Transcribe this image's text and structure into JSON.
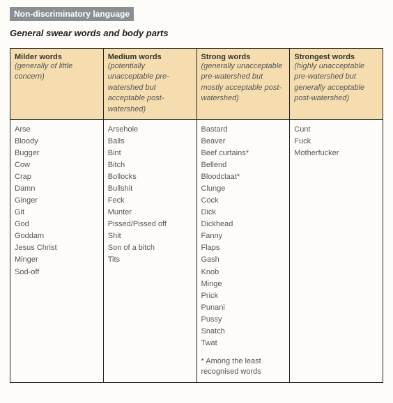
{
  "badge": "Non-discriminatory language",
  "subheading": "General swear words and body parts",
  "columns": [
    {
      "title": "Milder words",
      "desc": "(generally of little concern)"
    },
    {
      "title": "Medium words",
      "desc": "(potentially unacceptable pre-watershed but acceptable post-watershed)"
    },
    {
      "title": "Strong words",
      "desc": "(generally unacceptable pre-watershed but mostly acceptable post-watershed)"
    },
    {
      "title": "Strongest words",
      "desc": "(highly unacceptable pre-watershed but generally acceptable post-watershed)"
    }
  ],
  "words": {
    "milder": [
      "Arse",
      "Bloody",
      "Bugger",
      "Cow",
      "Crap",
      "Damn",
      "Ginger",
      "Git",
      "God",
      "Goddam",
      "Jesus Christ",
      "Minger",
      "Sod-off"
    ],
    "medium": [
      "Arsehole",
      "Balls",
      "Bint",
      "Bitch",
      "Bollocks",
      "Bullshit",
      "Feck",
      "Munter",
      "Pissed/Pissed off",
      "Shit",
      "Son of a bitch",
      "Tits"
    ],
    "strong": [
      "Bastard",
      "Beaver",
      "Beef curtains*",
      "Bellend",
      "Bloodclaat*",
      "Clunge",
      "Cock",
      "Dick",
      "Dickhead",
      "Fanny",
      "Flaps",
      "Gash",
      "Knob",
      "Minge",
      "Prick",
      "Punani",
      "Pussy",
      "Snatch",
      "Twat"
    ],
    "strongest": [
      "Cunt",
      "Fuck",
      "Motherfucker"
    ]
  },
  "footnote": "* Among the least recognised words"
}
